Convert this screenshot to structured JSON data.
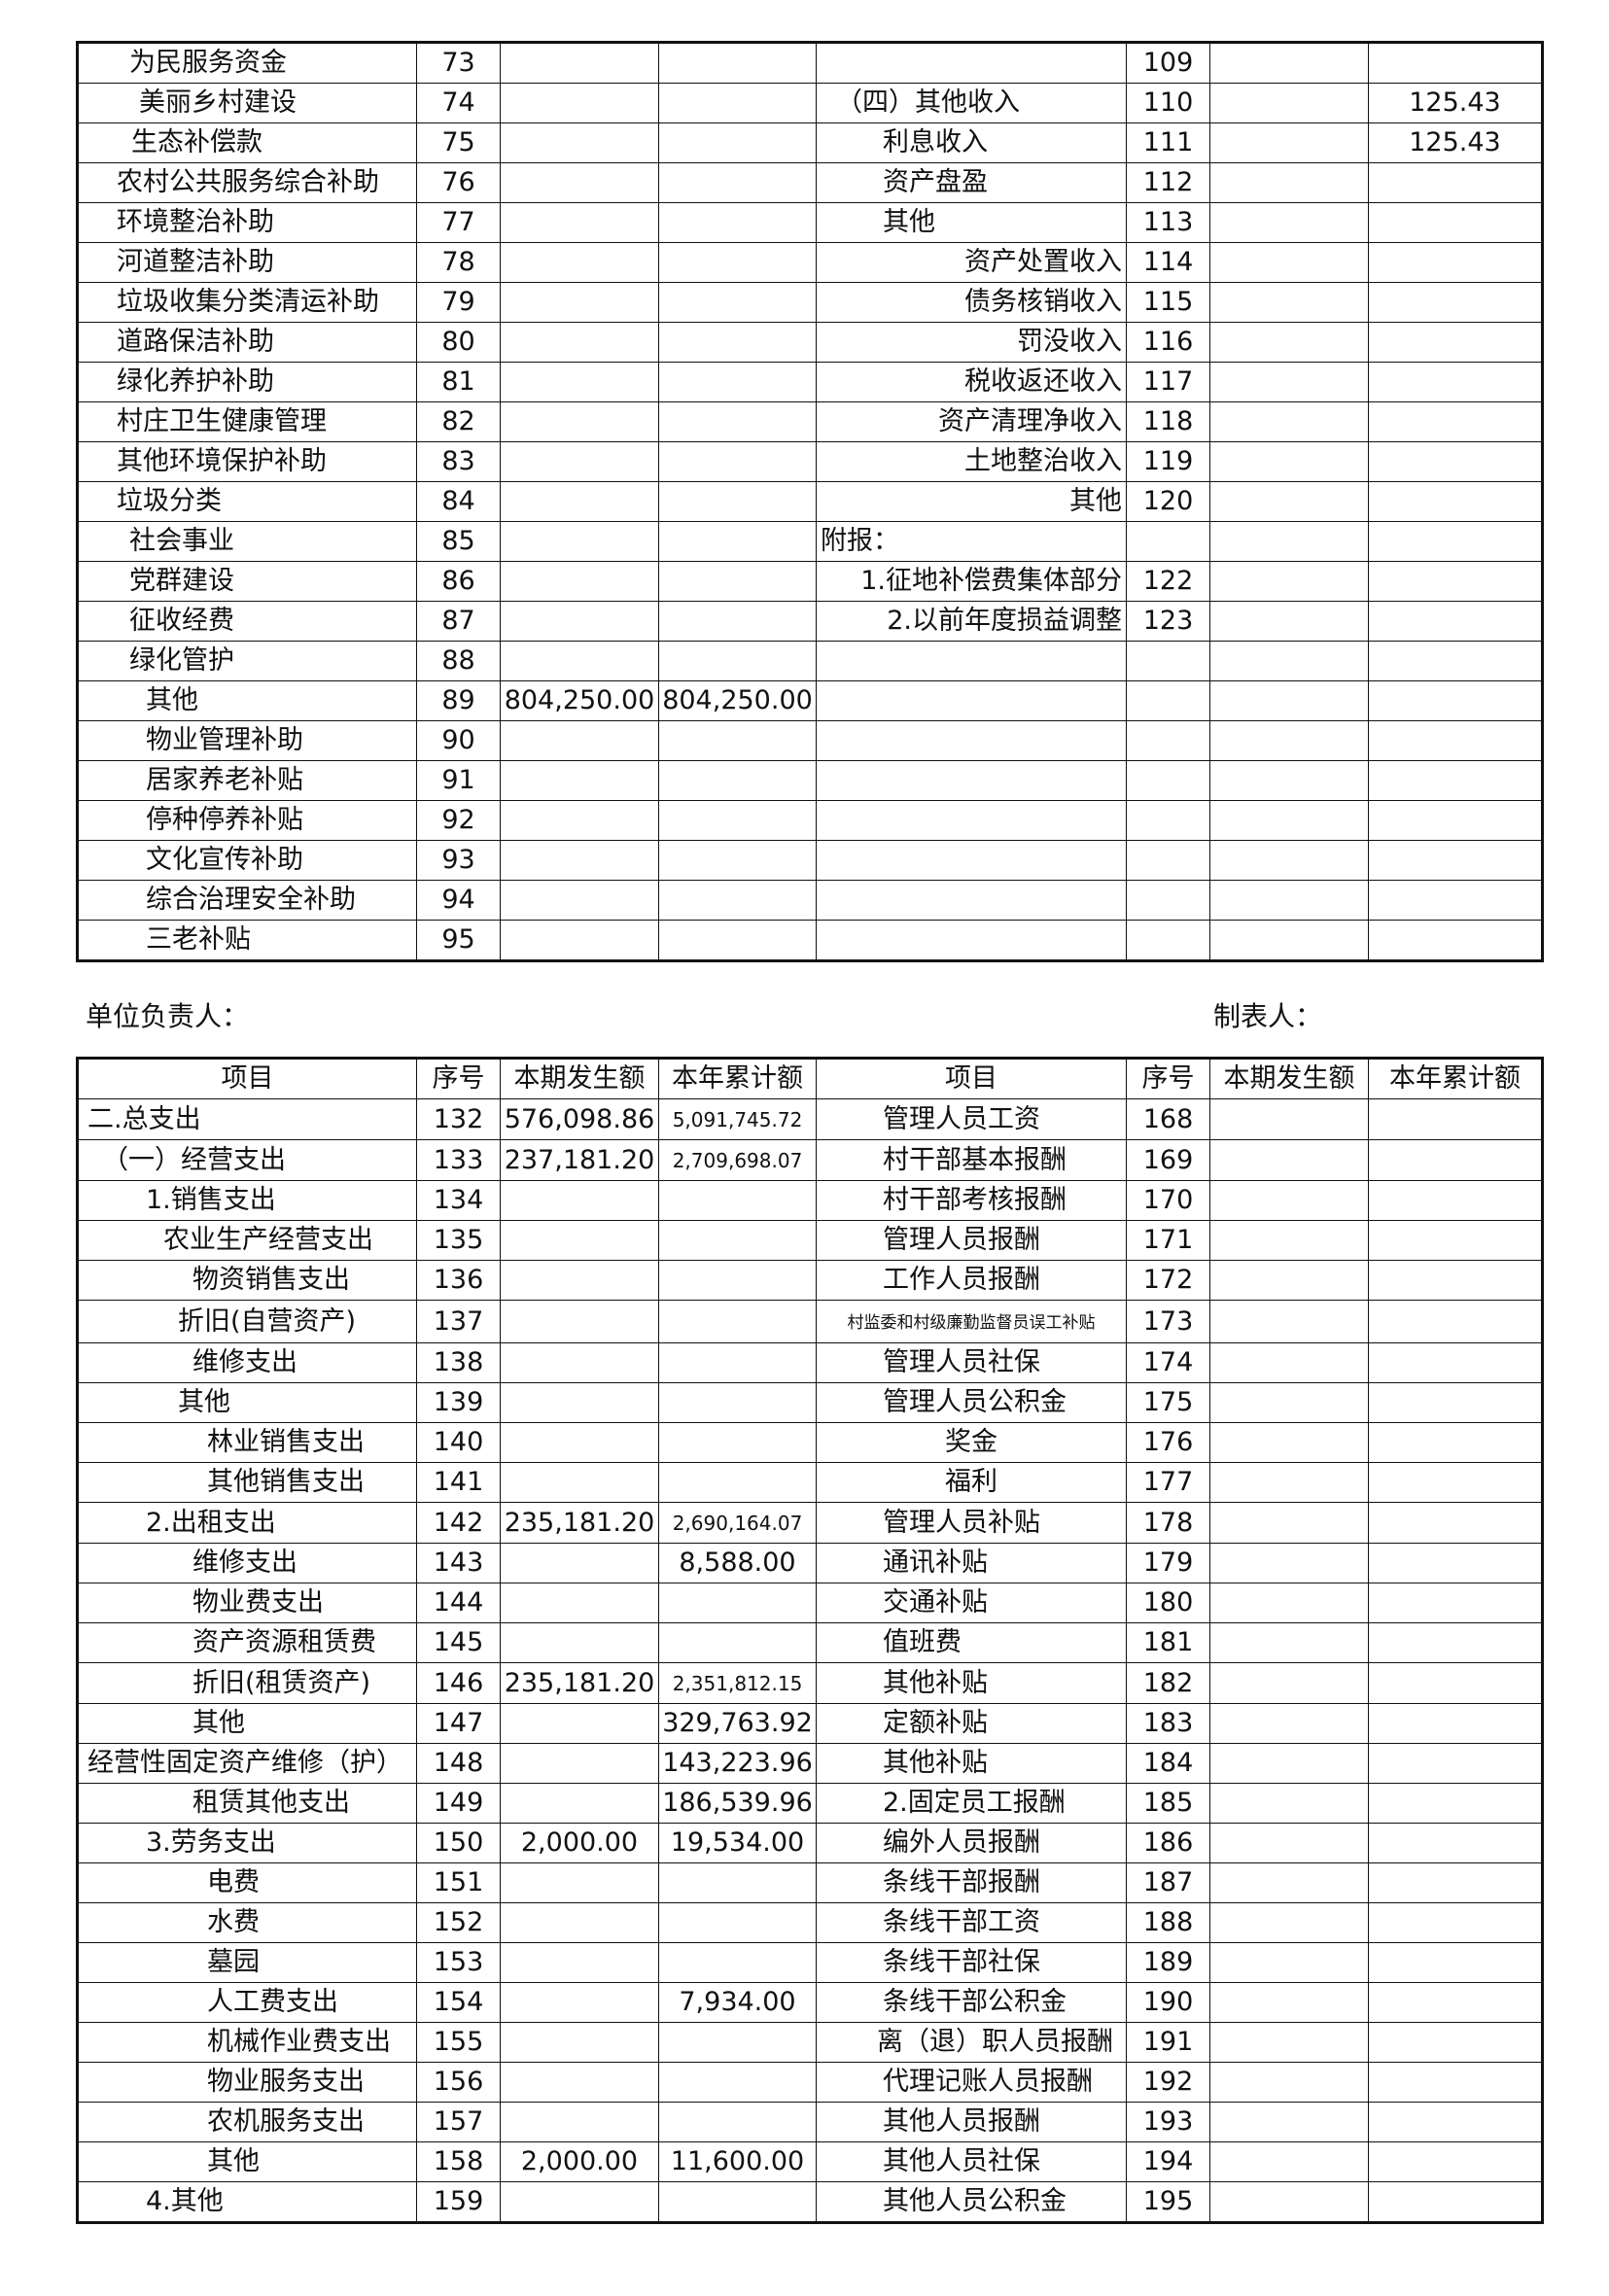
{
  "table1": {
    "rows": [
      [
        "为民服务资金",
        "73",
        null,
        null,
        null,
        "109",
        null,
        null
      ],
      [
        "美丽乡村建设",
        "74",
        null,
        null,
        "（四）其他收入",
        "110",
        null,
        "125.43"
      ],
      [
        "生态补偿款",
        "75",
        null,
        null,
        "利息收入",
        "111",
        null,
        "125.43"
      ],
      [
        "农村公共服务综合补助",
        "76",
        null,
        null,
        "资产盘盈",
        "112",
        null,
        null
      ],
      [
        "环境整治补助",
        "77",
        null,
        null,
        "其他",
        "113",
        null,
        null
      ],
      [
        "河道整洁补助",
        "78",
        null,
        null,
        "资产处置收入",
        "114",
        null,
        null
      ],
      [
        "垃圾收集分类清运补助",
        "79",
        null,
        null,
        "债务核销收入",
        "115",
        null,
        null
      ],
      [
        "道路保洁补助",
        "80",
        null,
        null,
        "罚没收入",
        "116",
        null,
        null
      ],
      [
        "绿化养护补助",
        "81",
        null,
        null,
        "税收返还收入",
        "117",
        null,
        null
      ],
      [
        "村庄卫生健康管理",
        "82",
        null,
        null,
        "资产清理净收入",
        "118",
        null,
        null
      ],
      [
        "其他环境保护补助",
        "83",
        null,
        null,
        "土地整治收入",
        "119",
        null,
        null
      ],
      [
        "垃圾分类",
        "84",
        null,
        null,
        "其他",
        "120",
        null,
        null
      ],
      [
        "社会事业",
        "85",
        null,
        null,
        "附报：",
        null,
        null,
        null
      ],
      [
        "党群建设",
        "86",
        null,
        null,
        "1.征地补偿费集体部分",
        "122",
        null,
        null
      ],
      [
        "征收经费",
        "87",
        null,
        null,
        "2.以前年度损益调整",
        "123",
        null,
        null
      ],
      [
        "绿化管护",
        "88",
        null,
        null,
        null,
        null,
        null,
        null
      ],
      [
        "其他",
        "89",
        "804,250.00",
        "804,250.00",
        null,
        null,
        null,
        null
      ],
      [
        "物业管理补助",
        "90",
        null,
        null,
        null,
        null,
        null,
        null
      ],
      [
        "居家养老补贴",
        "91",
        null,
        null,
        null,
        null,
        null,
        null
      ],
      [
        "停种停养补贴",
        "92",
        null,
        null,
        null,
        null,
        null,
        null
      ],
      [
        "文化宣传补助",
        "93",
        null,
        null,
        null,
        null,
        null,
        null
      ],
      [
        "综合治理安全补助",
        "94",
        null,
        null,
        null,
        null,
        null,
        null
      ],
      [
        "三老补贴",
        "95",
        null,
        null,
        null,
        null,
        null,
        null
      ]
    ]
  },
  "signatures": {
    "leader": "单位负责人：",
    "preparer": "制表人："
  },
  "table2": {
    "header": [
      "项目",
      "序号",
      "本期发生额",
      "本年累计额",
      "项目",
      "序号",
      "本期发生额",
      "本年累计额"
    ],
    "rows": [
      [
        "二.总支出",
        "132",
        "576,098.86",
        "5,091,745.72",
        "管理人员工资",
        "168",
        null,
        null
      ],
      [
        "（一）经营支出",
        "133",
        "237,181.20",
        "2,709,698.07",
        "村干部基本报酬",
        "169",
        null,
        null
      ],
      [
        "1.销售支出",
        "134",
        null,
        null,
        "村干部考核报酬",
        "170",
        null,
        null
      ],
      [
        "农业生产经营支出",
        "135",
        null,
        null,
        "管理人员报酬",
        "171",
        null,
        null
      ],
      [
        "物资销售支出",
        "136",
        null,
        null,
        "工作人员报酬",
        "172",
        null,
        null
      ],
      [
        "折旧(自营资产)",
        "137",
        null,
        null,
        "村监委和村级廉勤监督员误工补贴",
        "173",
        null,
        null
      ],
      [
        "维修支出",
        "138",
        null,
        null,
        "管理人员社保",
        "174",
        null,
        null
      ],
      [
        "其他",
        "139",
        null,
        null,
        "管理人员公积金",
        "175",
        null,
        null
      ],
      [
        "林业销售支出",
        "140",
        null,
        null,
        "奖金",
        "176",
        null,
        null
      ],
      [
        "其他销售支出",
        "141",
        null,
        null,
        "福利",
        "177",
        null,
        null
      ],
      [
        "2.出租支出",
        "142",
        "235,181.20",
        "2,690,164.07",
        "管理人员补贴",
        "178",
        null,
        null
      ],
      [
        "维修支出",
        "143",
        null,
        "8,588.00",
        "通讯补贴",
        "179",
        null,
        null
      ],
      [
        "物业费支出",
        "144",
        null,
        null,
        "交通补贴",
        "180",
        null,
        null
      ],
      [
        "资产资源租赁费",
        "145",
        null,
        null,
        "值班费",
        "181",
        null,
        null
      ],
      [
        "折旧(租赁资产)",
        "146",
        "235,181.20",
        "2,351,812.15",
        "其他补贴",
        "182",
        null,
        null
      ],
      [
        "其他",
        "147",
        null,
        "329,763.92",
        "定额补贴",
        "183",
        null,
        null
      ],
      [
        "经营性固定资产维修（护）",
        "148",
        null,
        "143,223.96",
        "其他补贴",
        "184",
        null,
        null
      ],
      [
        "租赁其他支出",
        "149",
        null,
        "186,539.96",
        "2.固定员工报酬",
        "185",
        null,
        null
      ],
      [
        "3.劳务支出",
        "150",
        "2,000.00",
        "19,534.00",
        "编外人员报酬",
        "186",
        null,
        null
      ],
      [
        "电费",
        "151",
        null,
        null,
        "条线干部报酬",
        "187",
        null,
        null
      ],
      [
        "水费",
        "152",
        null,
        null,
        "条线干部工资",
        "188",
        null,
        null
      ],
      [
        "墓园",
        "153",
        null,
        null,
        "条线干部社保",
        "189",
        null,
        null
      ],
      [
        "人工费支出",
        "154",
        null,
        "7,934.00",
        "条线干部公积金",
        "190",
        null,
        null
      ],
      [
        "机械作业费支出",
        "155",
        null,
        null,
        "离（退）职人员报酬",
        "191",
        null,
        null
      ],
      [
        "物业服务支出",
        "156",
        null,
        null,
        "代理记账人员报酬",
        "192",
        null,
        null
      ],
      [
        "农机服务支出",
        "157",
        null,
        null,
        "其他人员报酬",
        "193",
        null,
        null
      ],
      [
        "其他",
        "158",
        "2,000.00",
        "11,600.00",
        "其他人员社保",
        "194",
        null,
        null
      ],
      [
        "4.其他",
        "159",
        null,
        null,
        "其他人员公积金",
        "195",
        null,
        null
      ]
    ]
  }
}
